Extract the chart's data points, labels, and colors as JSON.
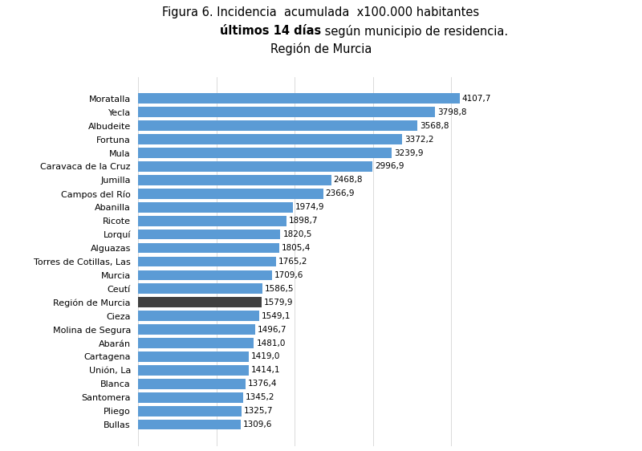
{
  "title_line1": "Figura 6. Incidencia  acumulada  x100.000 habitantes",
  "title_line3": "Región de Murcia",
  "categories": [
    "Bullas",
    "Pliego",
    "Santomera",
    "Blanca",
    "Unión, La",
    "Cartagena",
    "Abarán",
    "Molina de Segura",
    "Cieza",
    "Región de Murcia",
    "Ceutí",
    "Murcia",
    "Torres de Cotillas, Las",
    "Alguazas",
    "Lorquí",
    "Ricote",
    "Abanilla",
    "Campos del Río",
    "Jumilla",
    "Caravaca de la Cruz",
    "Mula",
    "Fortuna",
    "Albudeite",
    "Yecla",
    "Moratalla"
  ],
  "values": [
    1309.6,
    1325.7,
    1345.2,
    1376.4,
    1414.1,
    1419.0,
    1481.0,
    1496.7,
    1549.1,
    1579.9,
    1586.5,
    1709.6,
    1765.2,
    1805.4,
    1820.5,
    1898.7,
    1974.9,
    2366.9,
    2468.8,
    2996.9,
    3239.9,
    3372.2,
    3568.8,
    3798.8,
    4107.7
  ],
  "labels": [
    "1309,6",
    "1325,7",
    "1345,2",
    "1376,4",
    "1414,1",
    "1419,0",
    "1481,0",
    "1496,7",
    "1549,1",
    "1579,9",
    "1586,5",
    "1709,6",
    "1765,2",
    "1805,4",
    "1820,5",
    "1898,7",
    "1974,9",
    "2366,9",
    "2468,8",
    "2996,9",
    "3239,9",
    "3372,2",
    "3568,8",
    "3798,8",
    "4107,7"
  ],
  "highlight_index": 9,
  "bar_color_normal": "#5B9BD5",
  "bar_color_highlight": "#404040",
  "background_color": "#FFFFFF",
  "label_fontsize": 7.5,
  "category_fontsize": 8.0,
  "title_fontsize": 10.5,
  "xlim": [
    0,
    4800
  ]
}
